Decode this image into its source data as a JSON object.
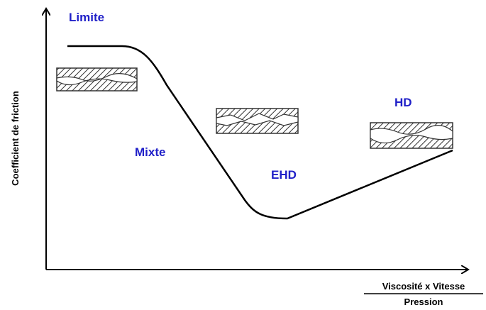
{
  "axes": {
    "y_label": "Coefficient de friction",
    "x_label": {
      "numerator": "Viscosité x Vitesse",
      "denominator": "Pression"
    }
  },
  "regimes": [
    {
      "label": "Limite"
    },
    {
      "label": "Mixte"
    },
    {
      "label": "EHD"
    },
    {
      "label": "HD"
    }
  ]
}
